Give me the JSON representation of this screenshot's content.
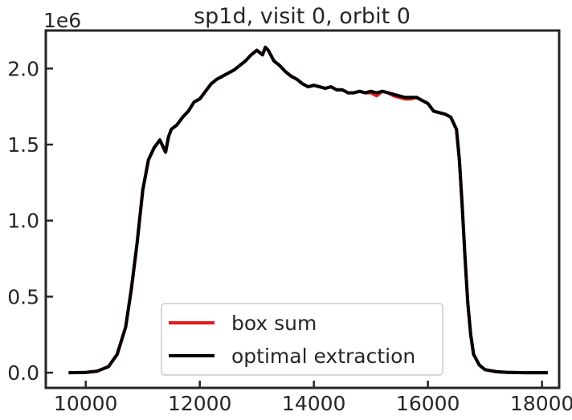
{
  "chart_data": {
    "type": "line",
    "title": "sp1d, visit 0, orbit 0",
    "xlabel": "",
    "ylabel": "",
    "y_offset_label": "1e6",
    "xlim": [
      9300,
      18300
    ],
    "ylim": [
      -0.1,
      2.25
    ],
    "x_ticks": [
      10000,
      12000,
      14000,
      16000,
      18000
    ],
    "y_ticks": [
      0.0,
      0.5,
      1.0,
      1.5,
      2.0
    ],
    "x_tick_labels": [
      "10000",
      "12000",
      "14000",
      "16000",
      "18000"
    ],
    "y_tick_labels": [
      "0.0",
      "0.5",
      "1.0",
      "1.5",
      "2.0"
    ],
    "grid": false,
    "legend_position": "lower-center",
    "series": [
      {
        "name": "box sum",
        "color": "#e41a1c",
        "x": [
          9700,
          10000,
          10200,
          10400,
          10550,
          10700,
          10800,
          10900,
          11000,
          11100,
          11200,
          11300,
          11400,
          11450,
          11500,
          11600,
          11700,
          11800,
          11900,
          12000,
          12100,
          12200,
          12300,
          12400,
          12500,
          12600,
          12700,
          12800,
          12900,
          13000,
          13100,
          13150,
          13200,
          13300,
          13400,
          13500,
          13600,
          13700,
          13800,
          13900,
          14000,
          14100,
          14200,
          14300,
          14400,
          14500,
          14600,
          14700,
          14800,
          14900,
          15000,
          15100,
          15200,
          15300,
          15400,
          15500,
          15600,
          15700,
          15800,
          15900,
          16000,
          16100,
          16200,
          16300,
          16400,
          16500,
          16550,
          16600,
          16650,
          16700,
          16750,
          16800,
          16900,
          17000,
          17200,
          17400,
          17700,
          18100
        ],
        "values": [
          0.0,
          0.002,
          0.01,
          0.04,
          0.12,
          0.3,
          0.55,
          0.85,
          1.2,
          1.4,
          1.48,
          1.53,
          1.45,
          1.55,
          1.6,
          1.63,
          1.68,
          1.72,
          1.78,
          1.8,
          1.85,
          1.9,
          1.93,
          1.95,
          1.97,
          1.99,
          2.02,
          2.05,
          2.09,
          2.12,
          2.09,
          2.14,
          2.12,
          2.05,
          2.02,
          1.98,
          1.95,
          1.93,
          1.9,
          1.88,
          1.89,
          1.88,
          1.87,
          1.88,
          1.86,
          1.86,
          1.84,
          1.84,
          1.85,
          1.84,
          1.84,
          1.82,
          1.85,
          1.84,
          1.82,
          1.81,
          1.8,
          1.8,
          1.81,
          1.79,
          1.77,
          1.72,
          1.71,
          1.7,
          1.68,
          1.6,
          1.4,
          1.1,
          0.75,
          0.45,
          0.25,
          0.12,
          0.05,
          0.02,
          0.006,
          0.002,
          0.0,
          0.0
        ]
      },
      {
        "name": "optimal extraction",
        "color": "#000000",
        "x": [
          9700,
          10000,
          10200,
          10400,
          10550,
          10700,
          10800,
          10900,
          11000,
          11100,
          11200,
          11300,
          11400,
          11450,
          11500,
          11600,
          11700,
          11800,
          11900,
          12000,
          12100,
          12200,
          12300,
          12400,
          12500,
          12600,
          12700,
          12800,
          12900,
          13000,
          13100,
          13150,
          13200,
          13300,
          13400,
          13500,
          13600,
          13700,
          13800,
          13900,
          14000,
          14100,
          14200,
          14300,
          14400,
          14500,
          14600,
          14700,
          14800,
          14900,
          15000,
          15100,
          15200,
          15300,
          15400,
          15500,
          15600,
          15700,
          15800,
          15900,
          16000,
          16100,
          16200,
          16300,
          16400,
          16500,
          16550,
          16600,
          16650,
          16700,
          16750,
          16800,
          16900,
          17000,
          17200,
          17400,
          17700,
          18100
        ],
        "values": [
          0.0,
          0.002,
          0.01,
          0.04,
          0.12,
          0.3,
          0.55,
          0.85,
          1.2,
          1.4,
          1.48,
          1.53,
          1.45,
          1.55,
          1.6,
          1.63,
          1.68,
          1.72,
          1.78,
          1.8,
          1.85,
          1.9,
          1.93,
          1.95,
          1.97,
          1.99,
          2.02,
          2.05,
          2.09,
          2.12,
          2.09,
          2.14,
          2.12,
          2.05,
          2.02,
          1.98,
          1.95,
          1.93,
          1.9,
          1.88,
          1.89,
          1.88,
          1.87,
          1.88,
          1.86,
          1.86,
          1.84,
          1.84,
          1.85,
          1.84,
          1.85,
          1.84,
          1.85,
          1.84,
          1.83,
          1.82,
          1.81,
          1.81,
          1.81,
          1.79,
          1.77,
          1.72,
          1.71,
          1.7,
          1.68,
          1.6,
          1.4,
          1.1,
          0.75,
          0.45,
          0.25,
          0.12,
          0.05,
          0.02,
          0.006,
          0.002,
          0.0,
          0.0
        ]
      }
    ]
  }
}
